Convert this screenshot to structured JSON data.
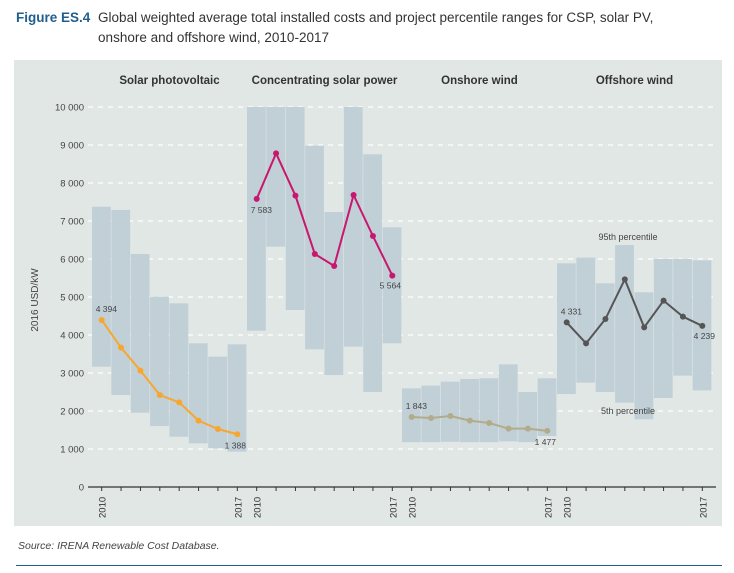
{
  "figure": {
    "label": "Figure ES.4",
    "title": "Global weighted average total installed costs and project percentile ranges for CSP, solar PV, onshore and offshore wind, 2010-2017",
    "source": "Source: IRENA Renewable Cost Database."
  },
  "chart_data": {
    "type": "line",
    "ylabel": "2016 USD/kW",
    "ylim": [
      0,
      10000
    ],
    "yticks": [
      "0",
      "1 000",
      "2 000",
      "3 000",
      "4 000",
      "5 000",
      "6 000",
      "7 000",
      "8 000",
      "9 000",
      "10 000"
    ],
    "grid": true,
    "years": [
      2010,
      2011,
      2012,
      2013,
      2014,
      2015,
      2016,
      2017
    ],
    "year_tick_labels": [
      "2010",
      "2017"
    ],
    "annotations": {
      "p95": "95th percentile",
      "p5": "5th percentile"
    },
    "band_color": "#c1cfd7",
    "panels": [
      {
        "title": "Solar photovoltaic",
        "color": "#f7a730",
        "weighted_average": [
          4394,
          3667,
          3061,
          2421,
          2228,
          1746,
          1526,
          1388
        ],
        "p95": [
          7376,
          7290,
          6132,
          5008,
          4833,
          3781,
          3430,
          3754
        ],
        "p5": [
          3166,
          2421,
          1956,
          1605,
          1324,
          1149,
          1018,
          930
        ],
        "first_label": "4 394",
        "last_label": "1 388"
      },
      {
        "title": "Concentrating solar power",
        "color": "#c8176e",
        "weighted_average": [
          7583,
          8781,
          7667,
          6132,
          5816,
          7684,
          6605,
          5564
        ],
        "p95": [
          10000,
          10000,
          10000,
          8982,
          7237,
          10000,
          8754,
          6833
        ],
        "p5": [
          4114,
          6325,
          4658,
          3623,
          2947,
          3693,
          2500,
          3781
        ],
        "first_label": "7 583",
        "last_label": "5 564"
      },
      {
        "title": "Onshore wind",
        "color": "#b3ac8b",
        "weighted_average": [
          1843,
          1816,
          1868,
          1746,
          1684,
          1535,
          1535,
          1477
        ],
        "p95": [
          2596,
          2667,
          2772,
          2842,
          2860,
          3228,
          2500,
          2860
        ],
        "p5": [
          1180,
          1180,
          1190,
          1180,
          1180,
          1200,
          1180,
          1340
        ],
        "first_label": "1 843",
        "last_label": "1 477"
      },
      {
        "title": "Offshore wind",
        "color": "#555555",
        "weighted_average": [
          4331,
          3781,
          4421,
          5465,
          4202,
          4904,
          4482,
          4239
        ],
        "p95": [
          5886,
          6035,
          5360,
          6368,
          5123,
          6000,
          6000,
          5965
        ],
        "p5": [
          2447,
          2746,
          2500,
          2219,
          1781,
          2342,
          2930,
          2544
        ],
        "first_label": "4 331",
        "last_label": "4 239"
      }
    ]
  }
}
